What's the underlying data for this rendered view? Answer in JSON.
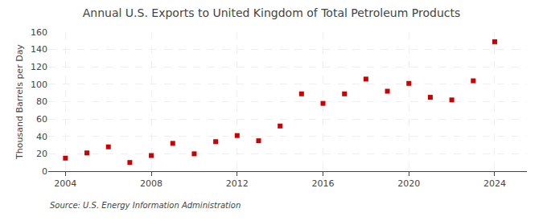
{
  "chart_data": {
    "type": "scatter",
    "title": "Annual U.S. Exports to United Kingdom of Total Petroleum Products",
    "ylabel": "Thousand Barrels per Day",
    "annotations": [
      "Source: U.S. Energy Information Administration"
    ],
    "x": [
      2004,
      2005,
      2006,
      2007,
      2008,
      2009,
      2010,
      2011,
      2012,
      2013,
      2014,
      2015,
      2016,
      2017,
      2018,
      2019,
      2020,
      2021,
      2022,
      2023,
      2024
    ],
    "values": [
      15,
      21,
      28,
      10,
      18,
      32,
      20,
      34,
      41,
      35,
      52,
      89,
      78,
      89,
      106,
      92,
      101,
      85,
      82,
      104,
      149
    ],
    "color": "#CC0000",
    "marker": "square",
    "xlim": [
      2003.2,
      2025.5
    ],
    "ylim": [
      0,
      160
    ],
    "xticks": [
      2004,
      2008,
      2012,
      2016,
      2020,
      2024
    ],
    "yticks": [
      0,
      20,
      40,
      60,
      80,
      100,
      120,
      140,
      160
    ],
    "grid": true
  }
}
